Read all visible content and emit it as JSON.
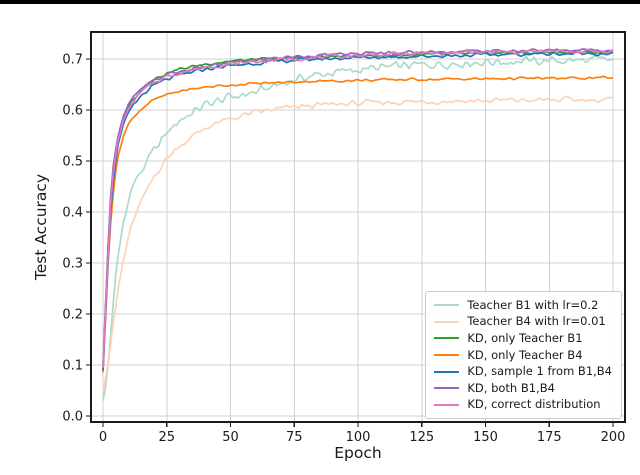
{
  "figure": {
    "top_rule_color": "#000000",
    "background": "#ffffff",
    "spine_color": "#1a1a1a",
    "grid_color": "#d0d0d0"
  },
  "chart_data": {
    "type": "line",
    "title": "",
    "xlabel": "Epoch",
    "ylabel": "Test Accuracy",
    "xticks": [
      0,
      25,
      50,
      75,
      100,
      125,
      150,
      175,
      200
    ],
    "ytick_labels": [
      "0.0",
      "0.1",
      "0.2",
      "0.3",
      "0.4",
      "0.5",
      "0.6",
      "0.7"
    ],
    "ytick_values": [
      0.0,
      0.1,
      0.2,
      0.3,
      0.4,
      0.5,
      0.6,
      0.7
    ],
    "xlim": [
      -4.7,
      204.7
    ],
    "ylim": [
      -0.012,
      0.753
    ],
    "grid": true,
    "legend_position": "lower right",
    "anchor_epochs": [
      0,
      1,
      2,
      3,
      4,
      5,
      6,
      8,
      10,
      12,
      15,
      20,
      25,
      30,
      40,
      50,
      60,
      70,
      80,
      90,
      100,
      110,
      120,
      130,
      140,
      150,
      160,
      170,
      180,
      190,
      200
    ],
    "series": [
      {
        "name": "Teacher B1 with lr=0.2",
        "color": "#a9dbca",
        "noise": 0.011,
        "values": [
          0.03,
          0.055,
          0.1,
          0.16,
          0.22,
          0.275,
          0.315,
          0.38,
          0.425,
          0.455,
          0.48,
          0.52,
          0.555,
          0.58,
          0.61,
          0.625,
          0.635,
          0.652,
          0.665,
          0.673,
          0.679,
          0.683,
          0.687,
          0.69,
          0.692,
          0.694,
          0.695,
          0.696,
          0.697,
          0.697,
          0.698
        ]
      },
      {
        "name": "Teacher B4 with lr=0.01",
        "color": "#ffd2b2",
        "noise": 0.007,
        "values": [
          0.05,
          0.075,
          0.105,
          0.14,
          0.18,
          0.215,
          0.25,
          0.305,
          0.35,
          0.385,
          0.42,
          0.47,
          0.505,
          0.53,
          0.565,
          0.583,
          0.595,
          0.603,
          0.608,
          0.611,
          0.613,
          0.615,
          0.616,
          0.617,
          0.618,
          0.618,
          0.619,
          0.619,
          0.62,
          0.62,
          0.62
        ]
      },
      {
        "name": "KD, only Teacher B1",
        "color": "#2ca02c",
        "noise": 0.0035,
        "values": [
          0.09,
          0.21,
          0.33,
          0.43,
          0.48,
          0.52,
          0.548,
          0.585,
          0.607,
          0.622,
          0.64,
          0.66,
          0.672,
          0.68,
          0.69,
          0.696,
          0.699,
          0.701,
          0.703,
          0.705,
          0.706,
          0.707,
          0.708,
          0.709,
          0.71,
          0.711,
          0.712,
          0.712,
          0.713,
          0.713,
          0.714
        ]
      },
      {
        "name": "KD, only Teacher B4",
        "color": "#ff7f0e",
        "noise": 0.003,
        "values": [
          0.085,
          0.19,
          0.3,
          0.38,
          0.435,
          0.48,
          0.51,
          0.55,
          0.572,
          0.587,
          0.602,
          0.62,
          0.63,
          0.637,
          0.645,
          0.649,
          0.652,
          0.654,
          0.656,
          0.657,
          0.658,
          0.659,
          0.66,
          0.66,
          0.661,
          0.661,
          0.662,
          0.662,
          0.662,
          0.663,
          0.663
        ]
      },
      {
        "name": "KD, sample 1 from B1,B4",
        "color": "#1f77b4",
        "noise": 0.0045,
        "values": [
          0.09,
          0.195,
          0.305,
          0.4,
          0.46,
          0.5,
          0.532,
          0.57,
          0.594,
          0.61,
          0.628,
          0.648,
          0.66,
          0.668,
          0.68,
          0.687,
          0.692,
          0.696,
          0.699,
          0.701,
          0.703,
          0.704,
          0.705,
          0.706,
          0.707,
          0.708,
          0.709,
          0.71,
          0.71,
          0.711,
          0.711
        ]
      },
      {
        "name": "KD, both B1,B4",
        "color": "#9467bd",
        "noise": 0.004,
        "values": [
          0.1,
          0.215,
          0.335,
          0.43,
          0.49,
          0.525,
          0.552,
          0.588,
          0.61,
          0.625,
          0.641,
          0.658,
          0.669,
          0.675,
          0.685,
          0.692,
          0.698,
          0.703,
          0.706,
          0.708,
          0.71,
          0.712,
          0.713,
          0.714,
          0.715,
          0.716,
          0.716,
          0.717,
          0.717,
          0.718,
          0.718
        ]
      },
      {
        "name": "KD, correct distribution",
        "color": "#e377c2",
        "noise": 0.005,
        "values": [
          0.095,
          0.205,
          0.315,
          0.415,
          0.475,
          0.512,
          0.542,
          0.578,
          0.602,
          0.617,
          0.635,
          0.654,
          0.666,
          0.673,
          0.684,
          0.69,
          0.695,
          0.699,
          0.702,
          0.705,
          0.707,
          0.709,
          0.71,
          0.711,
          0.712,
          0.713,
          0.714,
          0.714,
          0.715,
          0.715,
          0.716
        ]
      }
    ]
  }
}
